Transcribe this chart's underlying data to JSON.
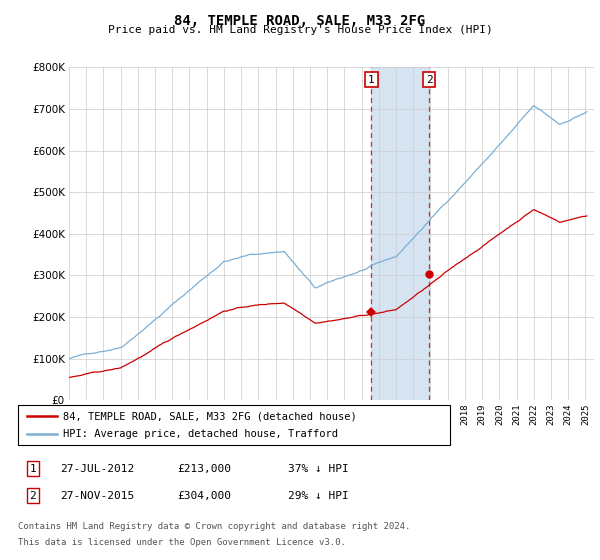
{
  "title": "84, TEMPLE ROAD, SALE, M33 2FG",
  "subtitle": "Price paid vs. HM Land Registry's House Price Index (HPI)",
  "ylim": [
    0,
    800000
  ],
  "xlim_start": 1995.0,
  "xlim_end": 2025.5,
  "sale1_date": 2012.57,
  "sale1_price": 213000,
  "sale1_label": "1",
  "sale2_date": 2015.92,
  "sale2_price": 304000,
  "sale2_label": "2",
  "legend_line1": "84, TEMPLE ROAD, SALE, M33 2FG (detached house)",
  "legend_line2": "HPI: Average price, detached house, Trafford",
  "footer1": "Contains HM Land Registry data © Crown copyright and database right 2024.",
  "footer2": "This data is licensed under the Open Government Licence v3.0.",
  "row1_date": "27-JUL-2012",
  "row1_price": "£213,000",
  "row1_hpi": "37% ↓ HPI",
  "row2_date": "27-NOV-2015",
  "row2_price": "£304,000",
  "row2_hpi": "29% ↓ HPI",
  "shade_color": "#cfe0f0",
  "sale_marker_color": "#cc0000",
  "hpi_color": "#7bafd4",
  "price_color": "#cc0000",
  "marker_box_color": "#cc0000",
  "background_color": "#ffffff",
  "grid_color": "#cccccc"
}
